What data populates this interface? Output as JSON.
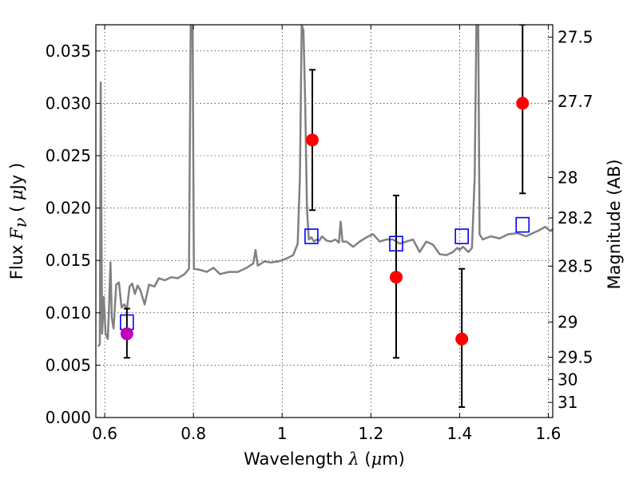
{
  "chart_data": {
    "type": "scatter",
    "xlabel": {
      "pre": "Wavelength  ",
      "sym": "λ",
      "post": " (",
      "mu": "μ",
      "unit": "m)"
    },
    "ylabel": {
      "pre": "Flux  ",
      "sym": "F",
      "sub": "ν",
      "post": "  ( ",
      "mu": "μ",
      "unit": "Jy )"
    },
    "y2label": "Magnitude (AB)",
    "xlim": [
      0.58,
      1.61
    ],
    "ylim": [
      0.0,
      0.0375
    ],
    "grid": true,
    "xticks": [
      {
        "value": 0.6,
        "label": "0.6"
      },
      {
        "value": 0.8,
        "label": "0.8"
      },
      {
        "value": 1.0,
        "label": "1"
      },
      {
        "value": 1.2,
        "label": "1.2"
      },
      {
        "value": 1.4,
        "label": "1.4"
      },
      {
        "value": 1.6,
        "label": "1.6"
      }
    ],
    "yticks": [
      {
        "value": 0.0,
        "label": "0.000"
      },
      {
        "value": 0.005,
        "label": "0.005"
      },
      {
        "value": 0.01,
        "label": "0.010"
      },
      {
        "value": 0.015,
        "label": "0.015"
      },
      {
        "value": 0.02,
        "label": "0.020"
      },
      {
        "value": 0.025,
        "label": "0.025"
      },
      {
        "value": 0.03,
        "label": "0.030"
      },
      {
        "value": 0.035,
        "label": "0.035"
      }
    ],
    "y2ticks": [
      {
        "value": 27.5,
        "label": "27.5"
      },
      {
        "value": 27.7,
        "label": "27.7"
      },
      {
        "value": 28,
        "label": "28"
      },
      {
        "value": 28.2,
        "label": "28.2"
      },
      {
        "value": 28.5,
        "label": "28.5"
      },
      {
        "value": 29,
        "label": "29"
      },
      {
        "value": 29.5,
        "label": "29.5"
      },
      {
        "value": 30,
        "label": "30"
      },
      {
        "value": 31,
        "label": "31"
      }
    ],
    "series": [
      {
        "kind": "spectrum",
        "color": "#808080",
        "points": [
          [
            0.585,
            0.0068
          ],
          [
            0.589,
            0.007
          ],
          [
            0.591,
            0.032
          ],
          [
            0.594,
            0.008
          ],
          [
            0.598,
            0.0115
          ],
          [
            0.602,
            0.008
          ],
          [
            0.607,
            0.0075
          ],
          [
            0.61,
            0.011
          ],
          [
            0.613,
            0.0148
          ],
          [
            0.616,
            0.0095
          ],
          [
            0.62,
            0.0085
          ],
          [
            0.626,
            0.0127
          ],
          [
            0.632,
            0.0129
          ],
          [
            0.638,
            0.0105
          ],
          [
            0.644,
            0.0108
          ],
          [
            0.65,
            0.0104
          ],
          [
            0.656,
            0.0125
          ],
          [
            0.662,
            0.0128
          ],
          [
            0.668,
            0.0118
          ],
          [
            0.674,
            0.0126
          ],
          [
            0.68,
            0.0122
          ],
          [
            0.69,
            0.0108
          ],
          [
            0.7,
            0.0127
          ],
          [
            0.712,
            0.0125
          ],
          [
            0.722,
            0.0133
          ],
          [
            0.735,
            0.0131
          ],
          [
            0.75,
            0.0134
          ],
          [
            0.765,
            0.0133
          ],
          [
            0.78,
            0.0137
          ],
          [
            0.79,
            0.0142
          ],
          [
            0.794,
            0.038
          ],
          [
            0.798,
            0.038
          ],
          [
            0.801,
            0.0142
          ],
          [
            0.815,
            0.0141
          ],
          [
            0.83,
            0.0139
          ],
          [
            0.845,
            0.0143
          ],
          [
            0.86,
            0.0137
          ],
          [
            0.88,
            0.0139
          ],
          [
            0.9,
            0.0139
          ],
          [
            0.92,
            0.0143
          ],
          [
            0.935,
            0.0147
          ],
          [
            0.94,
            0.016
          ],
          [
            0.945,
            0.0145
          ],
          [
            0.96,
            0.0149
          ],
          [
            0.975,
            0.0148
          ],
          [
            0.99,
            0.0149
          ],
          [
            1.0,
            0.015
          ],
          [
            1.01,
            0.0152
          ],
          [
            1.025,
            0.0155
          ],
          [
            1.035,
            0.0166
          ],
          [
            1.04,
            0.023
          ],
          [
            1.044,
            0.0375
          ],
          [
            1.048,
            0.037
          ],
          [
            1.052,
            0.03
          ],
          [
            1.056,
            0.02
          ],
          [
            1.06,
            0.017
          ],
          [
            1.066,
            0.0172
          ],
          [
            1.072,
            0.0168
          ],
          [
            1.078,
            0.017
          ],
          [
            1.084,
            0.0169
          ],
          [
            1.09,
            0.0173
          ],
          [
            1.1,
            0.0169
          ],
          [
            1.11,
            0.0168
          ],
          [
            1.12,
            0.017
          ],
          [
            1.128,
            0.0167
          ],
          [
            1.132,
            0.0187
          ],
          [
            1.136,
            0.0168
          ],
          [
            1.145,
            0.0168
          ],
          [
            1.16,
            0.0163
          ],
          [
            1.175,
            0.0168
          ],
          [
            1.19,
            0.0172
          ],
          [
            1.205,
            0.0175
          ],
          [
            1.22,
            0.0168
          ],
          [
            1.235,
            0.017
          ],
          [
            1.25,
            0.017
          ],
          [
            1.265,
            0.0166
          ],
          [
            1.28,
            0.0168
          ],
          [
            1.295,
            0.017
          ],
          [
            1.31,
            0.0158
          ],
          [
            1.325,
            0.0168
          ],
          [
            1.34,
            0.0165
          ],
          [
            1.355,
            0.0156
          ],
          [
            1.37,
            0.0155
          ],
          [
            1.385,
            0.0158
          ],
          [
            1.395,
            0.0162
          ],
          [
            1.4,
            0.016
          ],
          [
            1.408,
            0.0163
          ],
          [
            1.415,
            0.016
          ],
          [
            1.42,
            0.0158
          ],
          [
            1.428,
            0.0162
          ],
          [
            1.434,
            0.023
          ],
          [
            1.438,
            0.038
          ],
          [
            1.442,
            0.038
          ],
          [
            1.445,
            0.0175
          ],
          [
            1.452,
            0.017
          ],
          [
            1.47,
            0.0173
          ],
          [
            1.49,
            0.0171
          ],
          [
            1.51,
            0.0175
          ],
          [
            1.53,
            0.0176
          ],
          [
            1.55,
            0.0173
          ],
          [
            1.565,
            0.0176
          ],
          [
            1.58,
            0.0179
          ],
          [
            1.593,
            0.0182
          ],
          [
            1.605,
            0.0178
          ],
          [
            1.61,
            0.018
          ]
        ]
      },
      {
        "kind": "model_points",
        "marker": "open-square",
        "color": "#0000ff",
        "x": [
          0.65,
          1.066,
          1.257,
          1.405,
          1.542
        ],
        "y": [
          0.0091,
          0.0173,
          0.0166,
          0.0173,
          0.0184
        ]
      },
      {
        "kind": "observed_points",
        "marker": "filled-circle",
        "x": [
          0.65,
          1.068,
          1.257,
          1.405,
          1.542
        ],
        "y": [
          0.008,
          0.0265,
          0.0134,
          0.0075,
          0.03
        ],
        "yerr_low": [
          0.0057,
          0.0198,
          0.0057,
          0.001,
          0.0214
        ],
        "yerr_high": [
          0.0104,
          0.0332,
          0.0212,
          0.0142,
          0.0375
        ],
        "colors": [
          "#bf00bf",
          "#ff0000",
          "#ff0000",
          "#ff0000",
          "#ff0000"
        ]
      }
    ]
  }
}
